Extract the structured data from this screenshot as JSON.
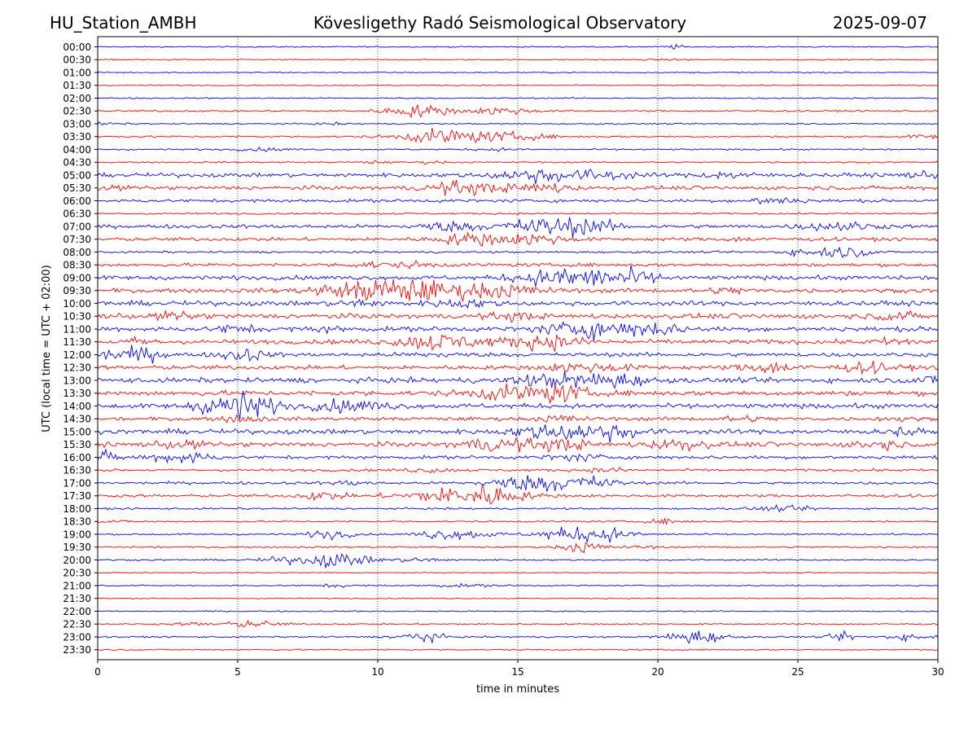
{
  "header": {
    "station": "HU_Station_AMBH",
    "observatory": "Kövesligethy Radó Seismological Observatory",
    "date": "2025-09-07"
  },
  "chart_data": {
    "type": "line",
    "title": "Kövesligethy Radó Seismological Observatory",
    "xlabel": "time in minutes",
    "ylabel": "UTC (local time = UTC + 02:00)",
    "xlim": [
      0,
      30
    ],
    "x_ticks": [
      "0",
      "5",
      "10",
      "15",
      "20",
      "25",
      "30"
    ],
    "grid": "vertical dotted lines at each 5 minutes",
    "colors": [
      "#0000ff",
      "#ff0000"
    ],
    "rows": [
      {
        "label": "00:00",
        "base": 0.5,
        "events": [
          [
            20.6,
            0.5,
            1.2
          ]
        ]
      },
      {
        "label": "00:30",
        "base": 0.45,
        "events": [
          [
            20.6,
            0.15,
            3.5
          ]
        ]
      },
      {
        "label": "01:00",
        "base": 0.5,
        "events": []
      },
      {
        "label": "01:30",
        "base": 0.45,
        "events": []
      },
      {
        "label": "02:00",
        "base": 0.5,
        "events": []
      },
      {
        "label": "02:30",
        "base": 0.6,
        "events": [
          [
            11.5,
            1.5,
            5
          ],
          [
            14.5,
            1.0,
            4
          ]
        ]
      },
      {
        "label": "03:00",
        "base": 0.5,
        "events": [
          [
            0.1,
            0.3,
            3
          ],
          [
            8.3,
            0.2,
            2
          ]
        ]
      },
      {
        "label": "03:30",
        "base": 0.7,
        "events": [
          [
            12.3,
            1.8,
            6
          ],
          [
            14.8,
            0.9,
            5
          ],
          [
            29.8,
            0.4,
            4
          ]
        ]
      },
      {
        "label": "04:00",
        "base": 0.6,
        "events": [
          [
            6.0,
            0.3,
            4
          ],
          [
            14.2,
            0.3,
            3
          ]
        ]
      },
      {
        "label": "04:30",
        "base": 0.6,
        "events": [
          [
            9.8,
            0.3,
            2
          ],
          [
            12.0,
            0.3,
            2
          ]
        ]
      },
      {
        "label": "05:00",
        "base": 1.5,
        "events": [
          [
            15.8,
            1.5,
            6
          ],
          [
            18.2,
            1.0,
            4
          ],
          [
            22.5,
            0.7,
            4
          ],
          [
            29.5,
            0.5,
            3
          ]
        ]
      },
      {
        "label": "05:30",
        "base": 1.5,
        "events": [
          [
            13.0,
            1.5,
            5
          ],
          [
            15.8,
            1.2,
            4
          ],
          [
            0.2,
            0.5,
            3
          ]
        ]
      },
      {
        "label": "06:00",
        "base": 1.2,
        "events": [
          [
            23.8,
            0.5,
            3
          ],
          [
            24.5,
            0.5,
            3
          ]
        ]
      },
      {
        "label": "06:30",
        "base": 0.7,
        "events": []
      },
      {
        "label": "07:00",
        "base": 1.4,
        "events": [
          [
            15.8,
            1.8,
            6
          ],
          [
            17.5,
            1.2,
            5
          ],
          [
            26.5,
            1.0,
            5
          ],
          [
            12.5,
            1.0,
            4
          ]
        ]
      },
      {
        "label": "07:30",
        "base": 1.3,
        "events": [
          [
            13.5,
            1.5,
            5
          ],
          [
            15.8,
            1.2,
            4
          ],
          [
            23.0,
            0.4,
            3
          ]
        ]
      },
      {
        "label": "08:00",
        "base": 0.8,
        "events": [
          [
            25.8,
            1.0,
            5
          ],
          [
            27.0,
            0.8,
            3
          ]
        ]
      },
      {
        "label": "08:30",
        "base": 1.3,
        "events": [
          [
            9.8,
            0.6,
            3
          ],
          [
            11.5,
            0.6,
            3
          ]
        ]
      },
      {
        "label": "09:00",
        "base": 1.6,
        "events": [
          [
            17.2,
            2.0,
            6
          ],
          [
            19.0,
            1.5,
            4
          ],
          [
            15.5,
            0.8,
            4
          ]
        ]
      },
      {
        "label": "09:30",
        "base": 1.6,
        "events": [
          [
            10.5,
            3.0,
            9
          ],
          [
            14.3,
            1.5,
            6
          ],
          [
            22.5,
            0.6,
            3
          ]
        ]
      },
      {
        "label": "10:00",
        "base": 1.8,
        "events": [
          [
            9.3,
            0.8,
            3
          ],
          [
            13.0,
            0.8,
            4
          ]
        ]
      },
      {
        "label": "10:30",
        "base": 1.9,
        "events": [
          [
            2.8,
            0.8,
            3
          ],
          [
            14.8,
            0.8,
            3
          ],
          [
            28.5,
            0.8,
            3
          ]
        ]
      },
      {
        "label": "11:00",
        "base": 1.8,
        "events": [
          [
            17.5,
            1.8,
            6
          ],
          [
            19.8,
            1.5,
            4
          ],
          [
            4.9,
            0.8,
            3
          ],
          [
            8.2,
            0.6,
            2
          ]
        ]
      },
      {
        "label": "11:30",
        "base": 1.7,
        "events": [
          [
            12.2,
            1.8,
            6
          ],
          [
            16.0,
            1.5,
            6
          ],
          [
            1.5,
            0.8,
            2
          ],
          [
            28.5,
            0.8,
            3
          ]
        ]
      },
      {
        "label": "12:00",
        "base": 1.5,
        "events": [
          [
            0.5,
            1.0,
            4
          ],
          [
            1.7,
            1.2,
            3
          ],
          [
            5.2,
            1.5,
            3
          ],
          [
            12.0,
            0.4,
            4
          ]
        ]
      },
      {
        "label": "12:30",
        "base": 1.6,
        "events": [
          [
            17.5,
            1.0,
            6
          ],
          [
            24.0,
            1.2,
            4
          ],
          [
            27.5,
            1.0,
            4
          ]
        ]
      },
      {
        "label": "13:00",
        "base": 1.9,
        "events": [
          [
            16.5,
            1.5,
            6
          ],
          [
            18.5,
            1.5,
            4
          ],
          [
            29.8,
            0.8,
            3
          ]
        ]
      },
      {
        "label": "13:30",
        "base": 1.9,
        "events": [
          [
            14.5,
            1.5,
            5
          ],
          [
            16.5,
            1.8,
            4
          ]
        ]
      },
      {
        "label": "14:00",
        "base": 1.8,
        "events": [
          [
            5.0,
            3.5,
            5
          ],
          [
            9.5,
            1.0,
            4
          ],
          [
            8.3,
            0.8,
            3
          ]
        ]
      },
      {
        "label": "14:30",
        "base": 1.4,
        "events": [
          [
            5.2,
            0.8,
            3
          ],
          [
            16.5,
            0.8,
            3
          ],
          [
            23.0,
            0.6,
            3
          ],
          [
            28.5,
            0.6,
            2
          ]
        ]
      },
      {
        "label": "15:00",
        "base": 1.8,
        "events": [
          [
            16.5,
            1.8,
            6
          ],
          [
            18.5,
            1.5,
            4
          ],
          [
            28.7,
            1.0,
            2
          ]
        ]
      },
      {
        "label": "15:30",
        "base": 1.8,
        "events": [
          [
            14.2,
            1.5,
            5
          ],
          [
            16.5,
            1.2,
            4
          ],
          [
            20.7,
            1.2,
            4
          ],
          [
            27.8,
            1.0,
            3
          ],
          [
            3.0,
            0.8,
            3
          ]
        ]
      },
      {
        "label": "16:00",
        "base": 1.3,
        "events": [
          [
            3.0,
            1.5,
            4
          ],
          [
            0.3,
            1.2,
            2
          ],
          [
            17.0,
            0.7,
            4
          ]
        ]
      },
      {
        "label": "16:30",
        "base": 1.0,
        "events": [
          [
            11.8,
            0.5,
            3
          ],
          [
            18.3,
            0.5,
            3
          ]
        ]
      },
      {
        "label": "17:00",
        "base": 1.0,
        "events": [
          [
            15.5,
            1.8,
            6
          ],
          [
            17.5,
            1.5,
            4
          ],
          [
            9.0,
            0.5,
            3
          ]
        ]
      },
      {
        "label": "17:30",
        "base": 1.1,
        "events": [
          [
            13.0,
            2.0,
            8
          ],
          [
            8.0,
            1.0,
            3
          ],
          [
            14.0,
            1.0,
            4
          ]
        ]
      },
      {
        "label": "18:00",
        "base": 0.7,
        "events": [
          [
            24.5,
            0.5,
            5
          ]
        ]
      },
      {
        "label": "18:30",
        "base": 0.6,
        "events": [
          [
            20.3,
            0.5,
            3
          ],
          [
            0.5,
            0.3,
            2
          ]
        ]
      },
      {
        "label": "19:00",
        "base": 0.6,
        "events": [
          [
            18.0,
            1.8,
            4
          ],
          [
            16.5,
            1.2,
            4
          ],
          [
            13.3,
            1.0,
            4
          ],
          [
            8.3,
            1.2,
            3
          ],
          [
            12.0,
            0.8,
            3
          ]
        ]
      },
      {
        "label": "19:30",
        "base": 0.6,
        "events": [
          [
            17.3,
            1.5,
            3
          ],
          [
            19.5,
            0.3,
            3
          ]
        ]
      },
      {
        "label": "20:00",
        "base": 0.6,
        "events": [
          [
            8.5,
            1.8,
            5
          ],
          [
            6.5,
            0.6,
            3
          ],
          [
            11.5,
            0.6,
            3
          ]
        ]
      },
      {
        "label": "20:30",
        "base": 0.4,
        "events": []
      },
      {
        "label": "21:00",
        "base": 0.5,
        "events": [
          [
            8.5,
            0.4,
            2
          ],
          [
            13.0,
            0.3,
            5
          ]
        ]
      },
      {
        "label": "21:30",
        "base": 0.4,
        "events": []
      },
      {
        "label": "22:00",
        "base": 0.5,
        "events": []
      },
      {
        "label": "22:30",
        "base": 0.6,
        "events": [
          [
            5.5,
            0.8,
            4
          ],
          [
            3.5,
            0.4,
            3
          ]
        ]
      },
      {
        "label": "23:00",
        "base": 0.6,
        "events": [
          [
            11.5,
            1.5,
            3
          ],
          [
            21.3,
            1.8,
            4
          ],
          [
            26.6,
            1.0,
            2
          ],
          [
            29.0,
            0.7,
            4
          ]
        ]
      },
      {
        "label": "23:30",
        "base": 0.5,
        "events": []
      }
    ]
  }
}
